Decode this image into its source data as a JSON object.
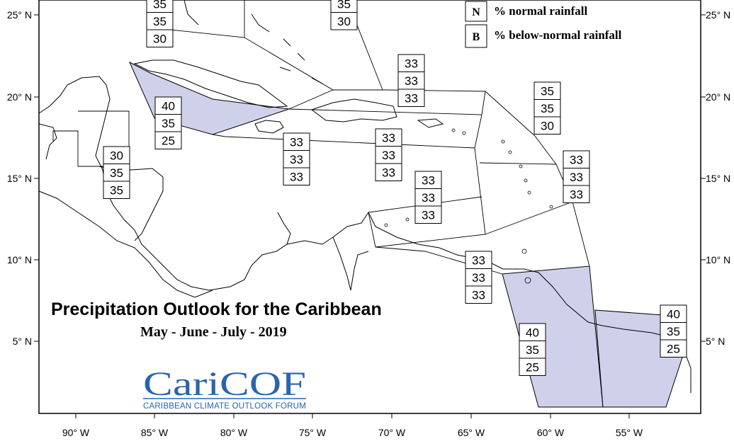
{
  "title": "Precipitation Outlook for the Caribbean",
  "subtitle": "May - June - July - 2019",
  "logo": {
    "name": "CariCOF",
    "tagline": "CARIBBEAN CLIMATE OUTLOOK FORUM",
    "color": "#2a63b0"
  },
  "legend": [
    {
      "key": "N",
      "text": "% normal rainfall"
    },
    {
      "key": "B",
      "text": "% below-normal rainfall"
    }
  ],
  "axes": {
    "lon_ticks": [
      "90° W",
      "85° W",
      "80° W",
      "75° W",
      "70° W",
      "65° W",
      "60° W",
      "55° W"
    ],
    "lat_ticks": [
      "25° N",
      "20° N",
      "15° N",
      "10° N",
      "5° N"
    ]
  },
  "colors": {
    "highlight_fill": "#cfd0ea",
    "line": "#000000"
  },
  "probability_boxes": [
    {
      "id": "bahamas-west",
      "values": [
        "35",
        "35",
        "30"
      ]
    },
    {
      "id": "bahamas-east",
      "values": [
        "35",
        "30"
      ]
    },
    {
      "id": "cuba",
      "values": [
        "40",
        "35",
        "25"
      ]
    },
    {
      "id": "belize",
      "values": [
        "30",
        "35",
        "35"
      ]
    },
    {
      "id": "jamaica",
      "values": [
        "33",
        "33",
        "33"
      ]
    },
    {
      "id": "hispaniola",
      "values": [
        "33",
        "33",
        "33"
      ]
    },
    {
      "id": "turks-caicos",
      "values": [
        "33",
        "33",
        "33"
      ]
    },
    {
      "id": "leeward-islands",
      "values": [
        "35",
        "35",
        "30"
      ]
    },
    {
      "id": "windward-islands",
      "values": [
        "33",
        "33",
        "33"
      ]
    },
    {
      "id": "abc-islands",
      "values": [
        "33",
        "33",
        "33"
      ]
    },
    {
      "id": "trinidad",
      "values": [
        "33",
        "33",
        "33"
      ]
    },
    {
      "id": "guyana",
      "values": [
        "40",
        "35",
        "25"
      ]
    },
    {
      "id": "suriname-guiana",
      "values": [
        "40",
        "35",
        "25"
      ]
    }
  ]
}
